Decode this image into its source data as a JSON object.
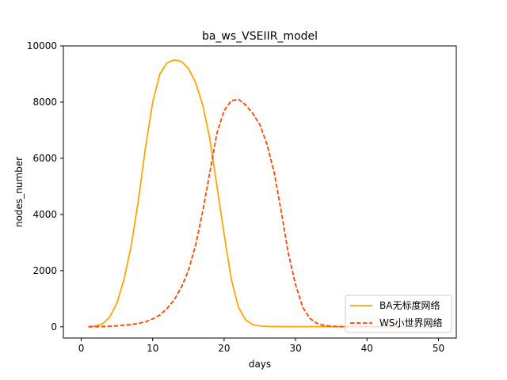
{
  "chart_data": {
    "type": "line",
    "title": "ba_ws_VSEIIR_model",
    "xlabel": "days",
    "ylabel": "nodes_number",
    "xlim": [
      -2.5,
      52.5
    ],
    "ylim": [
      -400,
      10000
    ],
    "xticks": [
      0,
      10,
      20,
      30,
      40,
      50
    ],
    "yticks": [
      0,
      2000,
      4000,
      6000,
      8000,
      10000
    ],
    "xtick_labels": [
      "0",
      "10",
      "20",
      "30",
      "40",
      "50"
    ],
    "ytick_labels": [
      "0",
      "2000",
      "4000",
      "6000",
      "8000",
      "10000"
    ],
    "grid": false,
    "legend_position": "lower-right",
    "x": [
      1,
      2,
      3,
      4,
      5,
      6,
      7,
      8,
      9,
      10,
      11,
      12,
      13,
      14,
      15,
      16,
      17,
      18,
      19,
      20,
      21,
      22,
      23,
      24,
      25,
      26,
      27,
      28,
      29,
      30,
      31,
      32,
      33,
      34,
      35,
      36,
      37,
      38,
      39,
      40,
      41,
      42,
      43,
      44,
      45,
      46,
      47,
      48,
      49,
      50
    ],
    "series": [
      {
        "name": "BA无标度网络",
        "color": "#ffa500",
        "linestyle": "solid",
        "values": [
          0,
          30,
          110,
          350,
          850,
          1700,
          2900,
          4500,
          6400,
          8000,
          9000,
          9400,
          9500,
          9450,
          9200,
          8700,
          7900,
          6700,
          5000,
          3300,
          1700,
          700,
          250,
          80,
          30,
          15,
          10,
          8,
          6,
          5,
          5,
          5,
          5,
          5,
          5,
          5,
          5,
          5,
          5,
          5,
          5,
          5,
          5,
          5,
          5,
          5,
          5,
          5,
          5,
          5
        ]
      },
      {
        "name": "WS小世界网络",
        "color": "#ff4500",
        "linestyle": "dashed",
        "values": [
          0,
          5,
          10,
          20,
          35,
          55,
          80,
          120,
          180,
          280,
          420,
          650,
          950,
          1400,
          2000,
          2900,
          4100,
          5500,
          6900,
          7700,
          8050,
          8100,
          7900,
          7600,
          7200,
          6500,
          5500,
          4100,
          2600,
          1500,
          700,
          300,
          120,
          50,
          20,
          10,
          5,
          5,
          5,
          5,
          5,
          5,
          5,
          5,
          5,
          5,
          5,
          5,
          5,
          5
        ]
      }
    ]
  }
}
